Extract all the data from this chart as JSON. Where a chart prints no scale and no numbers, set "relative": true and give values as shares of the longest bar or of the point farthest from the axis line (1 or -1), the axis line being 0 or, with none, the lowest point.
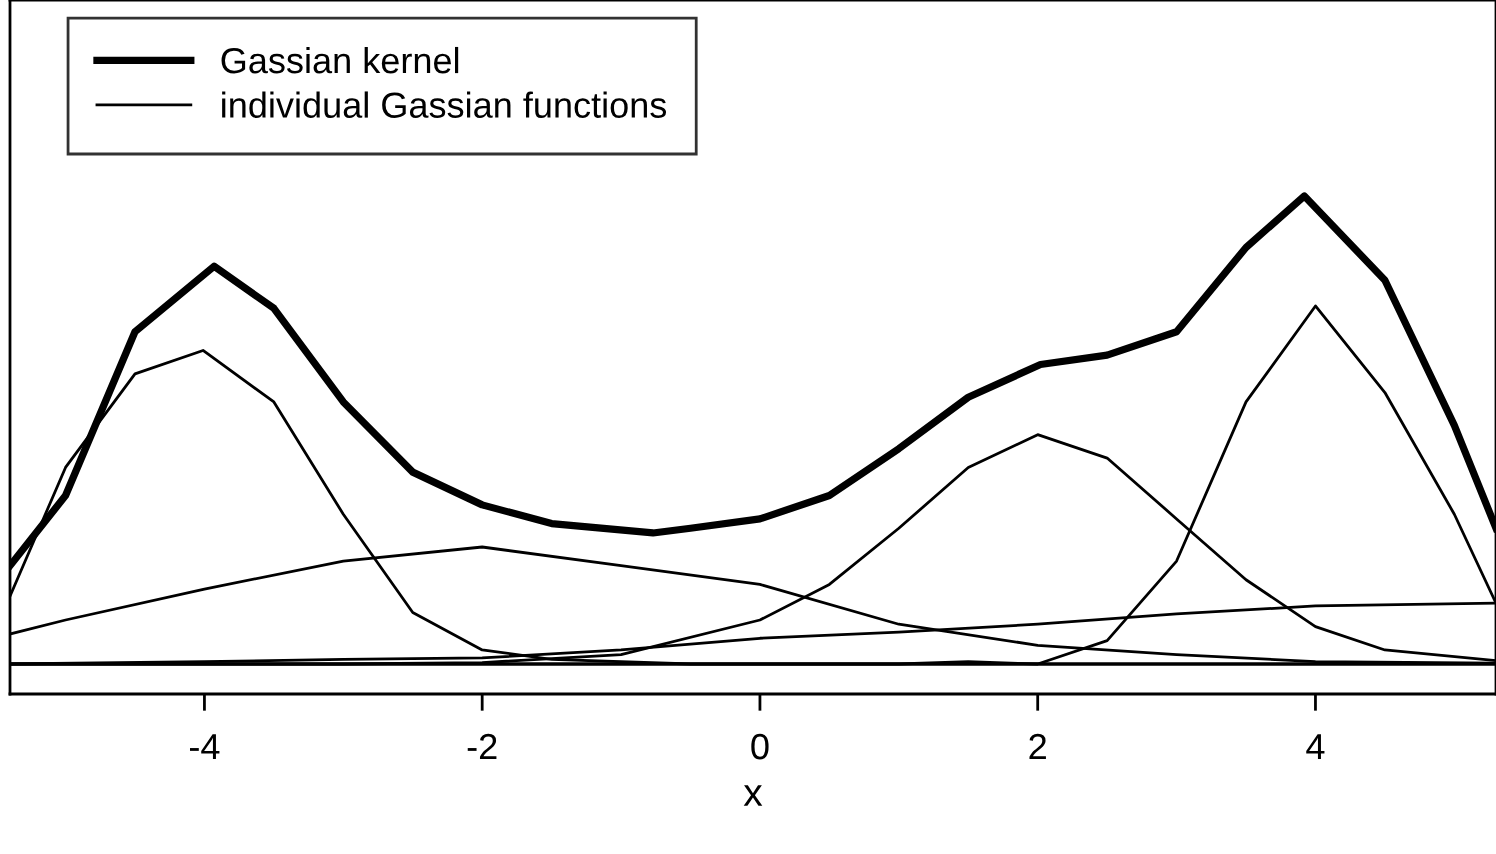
{
  "chart_data": {
    "type": "line",
    "xlabel": "x",
    "relative": true,
    "xlim": [
      -5.4,
      5.3
    ],
    "xticks": [
      -4,
      -2,
      0,
      2,
      4
    ],
    "tick_labels": "x",
    "grid": false,
    "legend": "top left",
    "marker": "none",
    "line_style": "solid",
    "ref_lines": [
      {
        "axis": "y",
        "value": 0,
        "color": "#000000"
      }
    ],
    "series": [
      {
        "name": "Gassian kernel",
        "color": "#000000",
        "x": [
          -5.4,
          -5,
          -4.5,
          -3.93,
          -3.5,
          -3,
          -2.5,
          -2,
          -1.5,
          -0.77,
          -0.5,
          0,
          0.5,
          1,
          1.5,
          2.02,
          2.5,
          3,
          3.5,
          3.92,
          4.5,
          5,
          5.3
        ],
        "values": [
          0.21,
          0.36,
          0.71,
          0.85,
          0.76,
          0.56,
          0.41,
          0.34,
          0.3,
          0.28,
          0.29,
          0.31,
          0.36,
          0.46,
          0.57,
          0.64,
          0.66,
          0.71,
          0.89,
          1.0,
          0.82,
          0.51,
          0.29
        ]
      },
      {
        "name": "individual Gassian functions",
        "color": "#000000",
        "x": [
          -5.4,
          -5,
          -4.5,
          -4.01,
          -3.5,
          -3,
          -2.5,
          -2,
          -1.5,
          -0.5,
          1,
          3,
          5.3
        ],
        "values": [
          0.145,
          0.42,
          0.62,
          0.67,
          0.56,
          0.32,
          0.11,
          0.03,
          0.01,
          0.0,
          0.0,
          0.0,
          0.0
        ]
      },
      {
        "color": "#000000",
        "x": [
          -5.4,
          -5,
          -4,
          -3,
          -2,
          -1,
          0,
          1,
          2,
          3,
          4,
          5.3
        ],
        "values": [
          0.064,
          0.094,
          0.16,
          0.22,
          0.25,
          0.21,
          0.17,
          0.085,
          0.04,
          0.02,
          0.005,
          0.002
        ]
      },
      {
        "color": "#000000",
        "x": [
          -5.4,
          -3,
          -2,
          -1,
          0,
          0.5,
          1,
          1.5,
          2,
          2.5,
          3,
          3.5,
          4,
          4.5,
          5.3
        ],
        "values": [
          0.0,
          0.0,
          0.003,
          0.02,
          0.094,
          0.17,
          0.29,
          0.42,
          0.49,
          0.44,
          0.31,
          0.18,
          0.08,
          0.03,
          0.007
        ]
      },
      {
        "color": "#000000",
        "x": [
          -5.4,
          0,
          1,
          1.5,
          2,
          2.5,
          3,
          3.5,
          4,
          4.5,
          5,
          5.3
        ],
        "values": [
          0.0,
          0.0,
          0.0,
          0.005,
          0.0,
          0.05,
          0.22,
          0.56,
          0.765,
          0.58,
          0.32,
          0.13
        ]
      },
      {
        "color": "#000000",
        "x": [
          -5.4,
          -4,
          -3,
          -2,
          -1,
          0,
          1,
          2,
          3,
          4,
          5.3
        ],
        "values": [
          0.0,
          0.005,
          0.01,
          0.013,
          0.03,
          0.055,
          0.068,
          0.085,
          0.107,
          0.124,
          0.13
        ]
      }
    ]
  }
}
